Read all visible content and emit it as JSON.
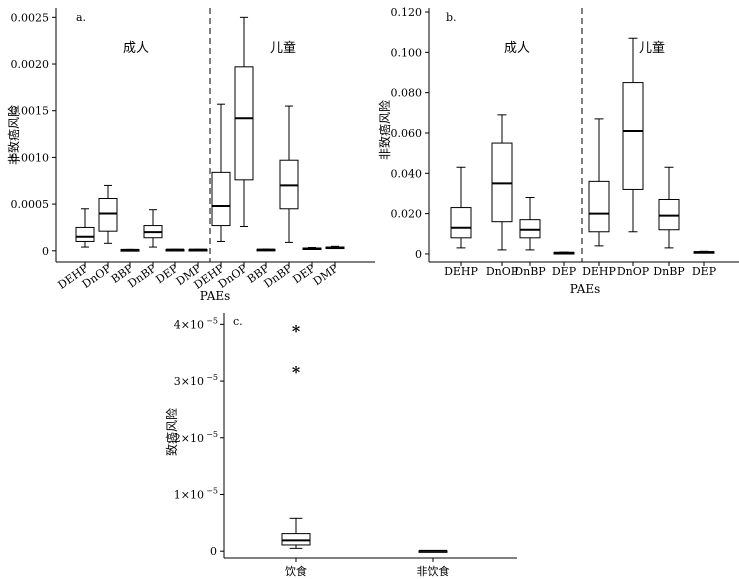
{
  "chart_data": [
    {
      "type": "box",
      "panel": "a.",
      "ylabel": "非致癌风险",
      "xlabel": "PAEs",
      "ylim": [
        -0.00012,
        0.0026
      ],
      "yticks": [
        0,
        0.0005,
        0.001,
        0.0015,
        0.002,
        0.0025
      ],
      "ytick_labels": [
        "0",
        "0.0005",
        "0.0010",
        "0.0015",
        "0.0020",
        "0.0025"
      ],
      "groups": [
        {
          "label": "成人",
          "categories": [
            "DEHP",
            "DnOP",
            "BBP",
            "DnBP",
            "DEP",
            "DMP"
          ]
        },
        {
          "label": "儿童",
          "categories": [
            "DEHP",
            "DnOP",
            "BBP",
            "DnBP",
            "DEP",
            "DMP"
          ]
        }
      ],
      "boxes": [
        {
          "min": 4e-05,
          "q1": 0.0001,
          "median": 0.00015,
          "q3": 0.00025,
          "max": 0.00045
        },
        {
          "min": 8e-05,
          "q1": 0.00021,
          "median": 0.0004,
          "q3": 0.00056,
          "max": 0.0007
        },
        {
          "min": 5e-06,
          "q1": 8e-06,
          "median": 1e-05,
          "q3": 1.2e-05,
          "max": 1.5e-05
        },
        {
          "min": 4e-05,
          "q1": 0.00014,
          "median": 0.0002,
          "q3": 0.00027,
          "max": 0.00044
        },
        {
          "min": 8e-06,
          "q1": 1e-05,
          "median": 1.2e-05,
          "q3": 1.4e-05,
          "max": 1.6e-05
        },
        {
          "min": 8e-06,
          "q1": 1e-05,
          "median": 1.2e-05,
          "q3": 1.4e-05,
          "max": 1.6e-05
        },
        {
          "min": 0.0001,
          "q1": 0.00027,
          "median": 0.00048,
          "q3": 0.00084,
          "max": 0.00157
        },
        {
          "min": 0.00026,
          "q1": 0.00076,
          "median": 0.00142,
          "q3": 0.00197,
          "max": 0.0025
        },
        {
          "min": 8e-06,
          "q1": 1e-05,
          "median": 1.2e-05,
          "q3": 1.5e-05,
          "max": 1.8e-05
        },
        {
          "min": 9e-05,
          "q1": 0.00045,
          "median": 0.0007,
          "q3": 0.00097,
          "max": 0.00155
        },
        {
          "min": 1.5e-05,
          "q1": 2e-05,
          "median": 2.5e-05,
          "q3": 3e-05,
          "max": 3.5e-05
        },
        {
          "min": 2.5e-05,
          "q1": 3e-05,
          "median": 3.5e-05,
          "q3": 4e-05,
          "max": 4.8e-05
        }
      ]
    },
    {
      "type": "box",
      "panel": "b.",
      "ylabel": "非致癌风险",
      "xlabel": "PAEs",
      "ylim": [
        -0.004,
        0.122
      ],
      "yticks": [
        0,
        0.02,
        0.04,
        0.06,
        0.08,
        0.1,
        0.12
      ],
      "ytick_labels": [
        "0",
        "0.020",
        "0.040",
        "0.060",
        "0.080",
        "0.100",
        "0.120"
      ],
      "groups": [
        {
          "label": "成人",
          "categories": [
            "DEHP",
            "DnOP",
            "DnBP",
            "DEP"
          ]
        },
        {
          "label": "儿童",
          "categories": [
            "DEHP",
            "DnOP",
            "DnBP",
            "DEP"
          ]
        }
      ],
      "boxes": [
        {
          "min": 0.003,
          "q1": 0.008,
          "median": 0.013,
          "q3": 0.023,
          "max": 0.043
        },
        {
          "min": 0.002,
          "q1": 0.016,
          "median": 0.035,
          "q3": 0.055,
          "max": 0.069
        },
        {
          "min": 0.002,
          "q1": 0.008,
          "median": 0.012,
          "q3": 0.017,
          "max": 0.028
        },
        {
          "min": 0.0003,
          "q1": 0.0005,
          "median": 0.0006,
          "q3": 0.0007,
          "max": 0.0009
        },
        {
          "min": 0.004,
          "q1": 0.011,
          "median": 0.02,
          "q3": 0.036,
          "max": 0.067
        },
        {
          "min": 0.011,
          "q1": 0.032,
          "median": 0.061,
          "q3": 0.085,
          "max": 0.107
        },
        {
          "min": 0.003,
          "q1": 0.012,
          "median": 0.019,
          "q3": 0.027,
          "max": 0.043
        },
        {
          "min": 0.0005,
          "q1": 0.0007,
          "median": 0.0009,
          "q3": 0.0011,
          "max": 0.0013
        }
      ]
    },
    {
      "type": "box",
      "panel": "c.",
      "ylabel": "致癌风险",
      "xlabel": "",
      "ylim": [
        -1.2e-06,
        4.2e-05
      ],
      "yticks": [
        0,
        1e-05,
        2e-05,
        3e-05,
        4e-05
      ],
      "ytick_labels": [
        {
          "base": "0",
          "exp": ""
        },
        {
          "base": "1×10",
          "exp": "−5"
        },
        {
          "base": "2×10",
          "exp": "−5"
        },
        {
          "base": "3×10",
          "exp": "−5"
        },
        {
          "base": "4×10",
          "exp": "−5"
        }
      ],
      "categories": [
        "饮食",
        "非饮食"
      ],
      "boxes": [
        {
          "min": 5e-07,
          "q1": 1.1e-06,
          "median": 1.9e-06,
          "q3": 3.1e-06,
          "max": 5.8e-06
        },
        {
          "min": 2e-08,
          "q1": 4e-08,
          "median": 5e-08,
          "q3": 6e-08,
          "max": 8e-08
        }
      ],
      "outliers": [
        {
          "category": 0,
          "value": 3.91e-05,
          "symbol": "*"
        },
        {
          "category": 0,
          "value": 3.19e-05,
          "symbol": "*"
        }
      ]
    }
  ]
}
